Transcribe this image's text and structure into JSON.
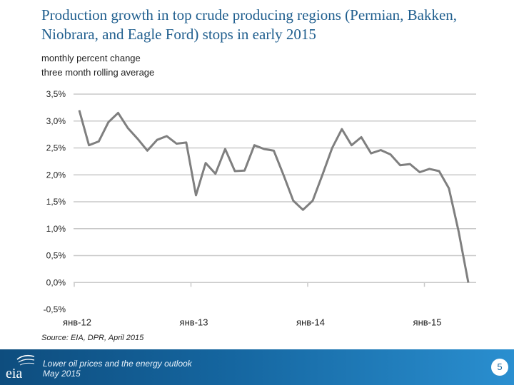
{
  "title": "Production growth in top crude producing regions (Permian, Bakken, Niobrara, and Eagle Ford) stops in early 2015",
  "subtitle_line1": "monthly percent change",
  "subtitle_line2": "three month rolling average",
  "source": "Source: EIA, DPR, April 2015",
  "footer": {
    "line1": "Lower oil prices and the energy outlook",
    "line2": "May 2015",
    "logo_text": "eia",
    "page_number": "5"
  },
  "colors": {
    "line": "#7f7f7f",
    "grid": "#c9c9c9",
    "title": "#1f5e8e",
    "footer": "#1566a0"
  },
  "chart_data": {
    "type": "line",
    "title": "",
    "xlabel": "",
    "ylabel": "",
    "ylim": [
      -0.5,
      3.5
    ],
    "yticks": [
      3.5,
      3.0,
      2.5,
      2.0,
      1.5,
      1.0,
      0.5,
      0.0,
      -0.5
    ],
    "ytick_labels": [
      "3,5%",
      "3,0%",
      "2,5%",
      "2,0%",
      "1,5%",
      "1,0%",
      "0,5%",
      "0,0%",
      "-0,5%"
    ],
    "x_tick_labels": [
      "янв-12",
      "янв-13",
      "янв-14",
      "янв-15"
    ],
    "grid": "horizontal",
    "series": [
      {
        "values": [
          3.2,
          2.55,
          2.62,
          2.98,
          3.15,
          2.87,
          2.67,
          2.45,
          2.65,
          2.72,
          2.58,
          2.6,
          1.62,
          2.22,
          2.02,
          2.48,
          2.07,
          2.08,
          2.55,
          2.48,
          2.45,
          2.0,
          1.52,
          1.35,
          1.52,
          2.0,
          2.5,
          2.85,
          2.55,
          2.7,
          2.4,
          2.46,
          2.38,
          2.18,
          2.2,
          2.05,
          2.11,
          2.07,
          1.75,
          0.95,
          0.0
        ]
      }
    ]
  }
}
